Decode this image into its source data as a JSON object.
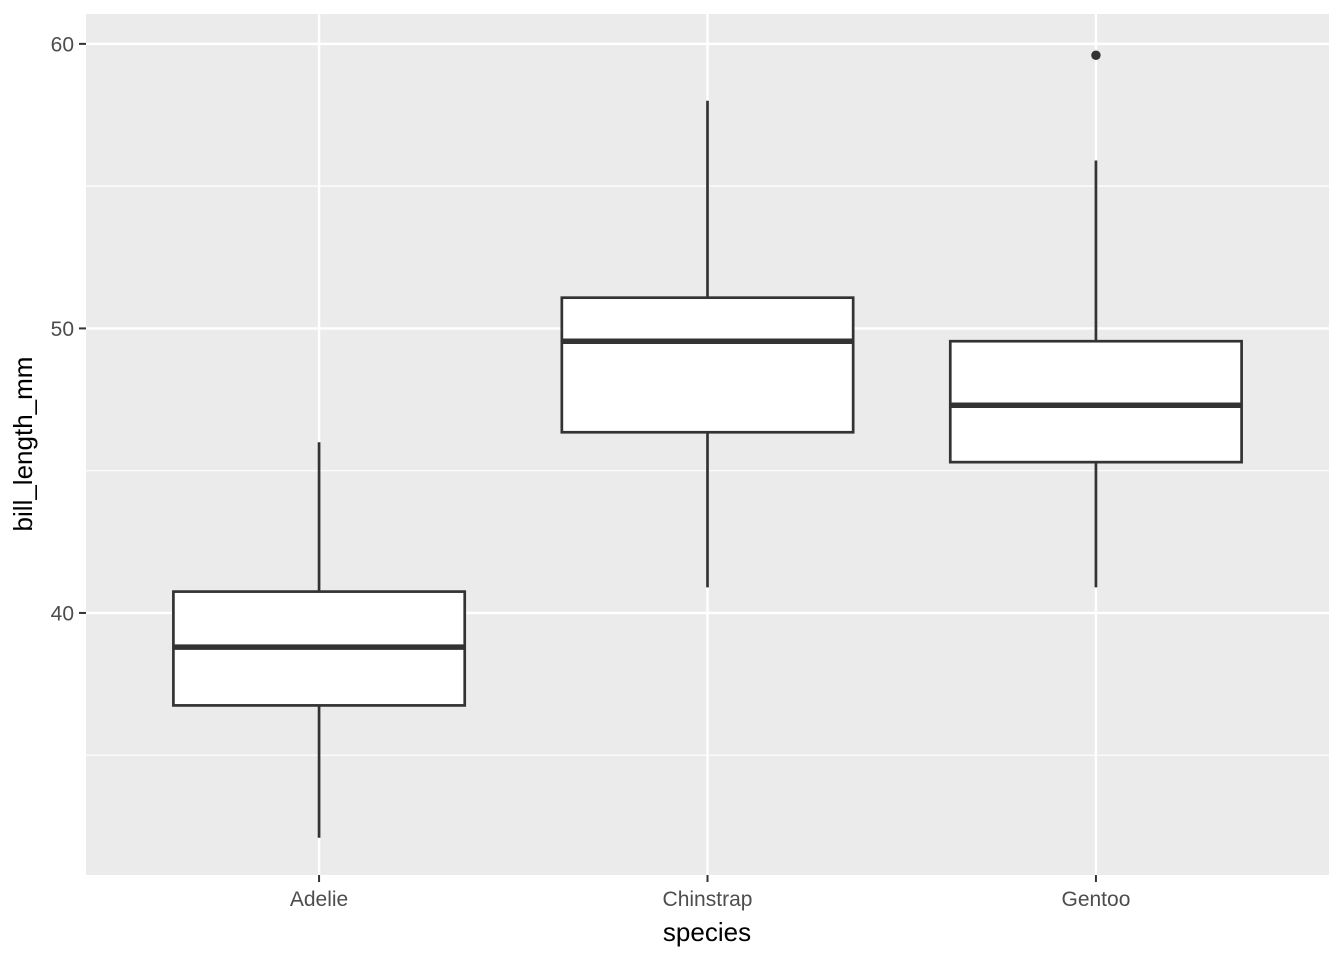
{
  "chart_data": {
    "type": "boxplot",
    "title": "",
    "xlabel": "species",
    "ylabel": "bill_length_mm",
    "categories": [
      "Adelie",
      "Chinstrap",
      "Gentoo"
    ],
    "series": [
      {
        "category": "Adelie",
        "whisker_low": 32.1,
        "q1": 36.75,
        "median": 38.8,
        "q3": 40.75,
        "whisker_high": 46.0,
        "outliers": []
      },
      {
        "category": "Chinstrap",
        "whisker_low": 40.9,
        "q1": 46.35,
        "median": 49.55,
        "q3": 51.08,
        "whisker_high": 58.0,
        "outliers": []
      },
      {
        "category": "Gentoo",
        "whisker_low": 40.9,
        "q1": 45.3,
        "median": 47.3,
        "q3": 49.55,
        "whisker_high": 55.9,
        "outliers": [
          59.6
        ]
      }
    ],
    "y_major_ticks": [
      {
        "value": 40,
        "label": "40"
      },
      {
        "value": 50,
        "label": "50"
      },
      {
        "value": 60,
        "label": "60"
      }
    ],
    "y_minor_gridlines": [
      35,
      45,
      55
    ],
    "ylim": [
      30.79,
      61.05
    ],
    "grid": true,
    "legend_position": "none",
    "box_width_fraction": 0.75
  },
  "style": {
    "plot_bg": "#FFFFFF",
    "panel_bg": "#EBEBEB",
    "grid_color": "#FFFFFF",
    "box_fill": "#FFFFFF",
    "box_stroke": "#333333",
    "median_stroke": "#333333",
    "outlier_color": "#333333",
    "tick_mark_color": "#333333",
    "axis_text_color": "#4D4D4D",
    "axis_title_color": "#000000"
  }
}
